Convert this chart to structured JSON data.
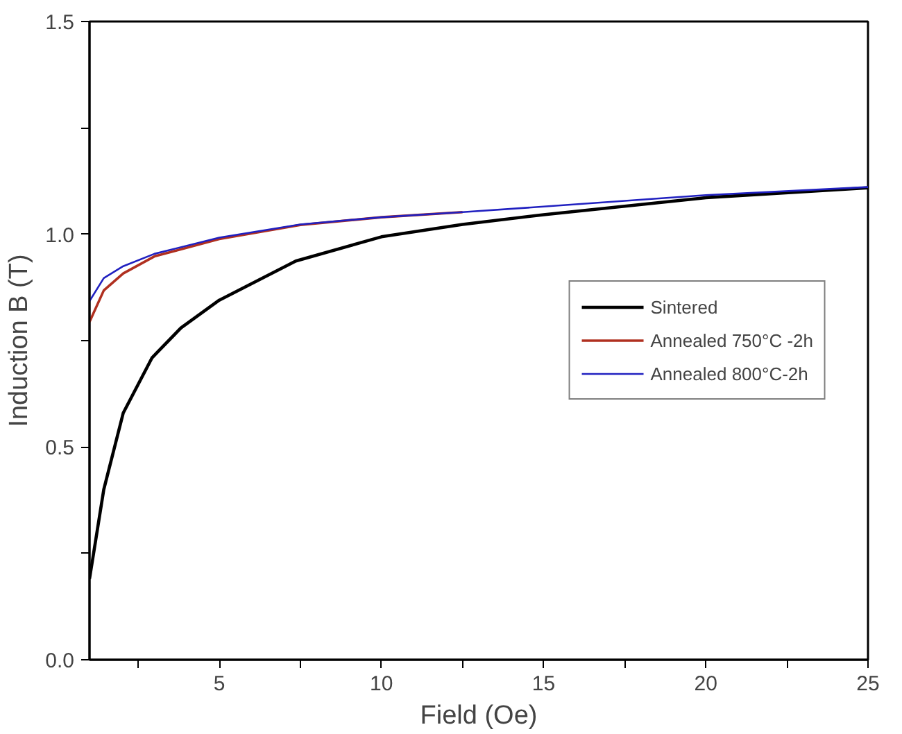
{
  "chart_data": {
    "type": "line",
    "xlabel": "Field (Oe)",
    "ylabel": "Induction B (T)",
    "xlim": [
      1,
      25
    ],
    "ylim": [
      0,
      1.5
    ],
    "xticks": [
      {
        "value": 2.5,
        "label": null
      },
      5,
      {
        "value": 7.5,
        "label": null
      },
      10,
      {
        "value": 12.5,
        "label": null
      },
      15,
      {
        "value": 17.5,
        "label": null
      },
      20,
      {
        "value": 22.5,
        "label": null
      },
      25
    ],
    "yticks": [
      "0.0",
      {
        "value": 0.25,
        "label": null
      },
      0.5,
      {
        "value": 0.75,
        "label": null
      },
      "1.0",
      {
        "value": 1.25,
        "label": null
      },
      1.5
    ],
    "grid": false,
    "legend": "right",
    "line_style": "solid",
    "series": [
      {
        "name": "Sintered",
        "color": "#000000",
        "x": [
          1,
          1.44,
          2.04,
          2.93,
          3.82,
          5,
          7.36,
          10,
          12.5,
          15,
          20,
          25
        ],
        "values": [
          0.19,
          0.4,
          0.58,
          0.71,
          0.78,
          0.845,
          0.937,
          0.994,
          1.023,
          1.046,
          1.086,
          1.109
        ]
      },
      {
        "name": "Annealed 750°C -2h",
        "color": "#b03020",
        "x": [
          1,
          1.44,
          2.04,
          3,
          5,
          7.5,
          10,
          12.5
        ],
        "values": [
          0.794,
          0.868,
          0.908,
          0.948,
          0.989,
          1.022,
          1.04,
          1.052
        ]
      },
      {
        "name": "Annealed 800°C-2h",
        "color": "#2020c0",
        "x": [
          1,
          1.44,
          2.04,
          3,
          5,
          7.5,
          10,
          12.5,
          15,
          20,
          25
        ],
        "values": [
          0.843,
          0.897,
          0.925,
          0.954,
          0.992,
          1.023,
          1.04,
          1.052,
          1.065,
          1.092,
          1.111
        ]
      }
    ]
  }
}
